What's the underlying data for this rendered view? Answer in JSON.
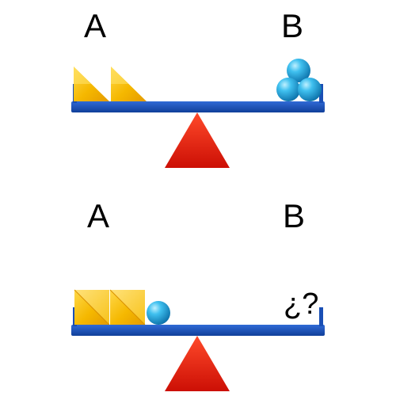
{
  "top_scale": {
    "left_label": "A",
    "right_label": "B",
    "left_items": {
      "shape": "triangle",
      "count": 2
    },
    "right_items": {
      "shape": "sphere",
      "count": 3
    }
  },
  "bottom_scale": {
    "left_label": "A",
    "right_label": "B",
    "left_items": [
      {
        "shape": "square",
        "count": 2
      },
      {
        "shape": "sphere",
        "count": 1
      }
    ],
    "right_text": "¿?"
  },
  "colors": {
    "beam": "#1a4fb5",
    "fulcrum": "#e01e10",
    "triangle": "#f5b800",
    "sphere": "#29a8e0"
  }
}
